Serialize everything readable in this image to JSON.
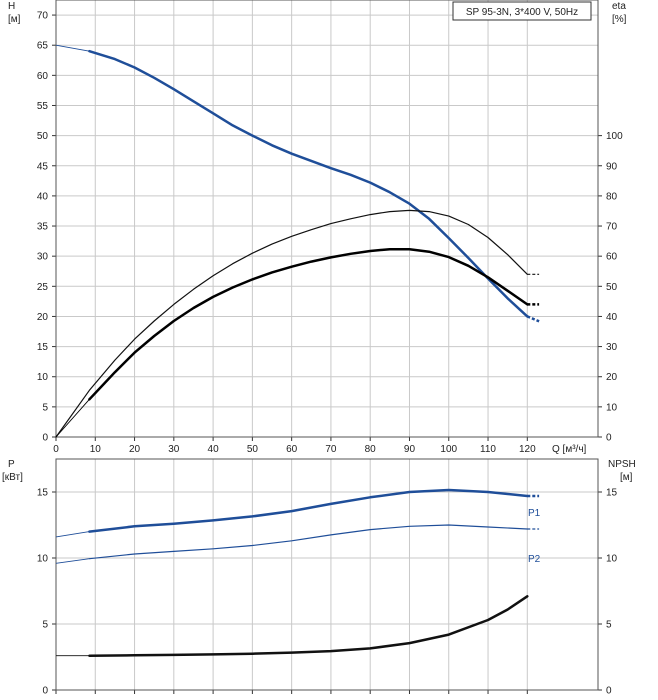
{
  "chart_data": [
    {
      "type": "line",
      "title": "SP 95-3N, 3*400 V, 50Hz",
      "xlabel": "Q [м³/ч]",
      "x_ticks": [
        0,
        10,
        20,
        30,
        40,
        50,
        60,
        70,
        80,
        90,
        100,
        110,
        120
      ],
      "xlim": [
        0,
        138
      ],
      "left_axis": {
        "name": "H",
        "unit": "[м]",
        "ylim": [
          0,
          72.5
        ],
        "ticks": [
          0,
          5,
          10,
          15,
          20,
          25,
          30,
          35,
          40,
          45,
          50,
          55,
          60,
          65,
          70
        ]
      },
      "right_axis": {
        "name": "eta",
        "unit": "[%]",
        "ylim": [
          0,
          145
        ],
        "ticks": [
          0,
          10,
          20,
          30,
          40,
          50,
          60,
          70,
          80,
          90,
          100
        ]
      },
      "grid": true,
      "series": [
        {
          "axis": "left",
          "color": "#1f4e99",
          "width": 2.5,
          "thin_extension": [
            [
              0,
              65
            ],
            [
              8.5,
              64
            ]
          ],
          "values": [
            [
              8.5,
              64
            ],
            [
              15,
              62.7
            ],
            [
              20,
              61.3
            ],
            [
              25,
              59.6
            ],
            [
              30,
              57.7
            ],
            [
              35,
              55.7
            ],
            [
              40,
              53.7
            ],
            [
              45,
              51.7
            ],
            [
              50,
              50
            ],
            [
              55,
              48.4
            ],
            [
              60,
              47
            ],
            [
              65,
              45.8
            ],
            [
              70,
              44.6
            ],
            [
              75,
              43.5
            ],
            [
              80,
              42.2
            ],
            [
              85,
              40.6
            ],
            [
              90,
              38.7
            ],
            [
              95,
              36.2
            ],
            [
              100,
              33
            ],
            [
              105,
              29.7
            ],
            [
              110,
              26.3
            ],
            [
              115,
              23
            ],
            [
              120,
              20
            ]
          ],
          "dashed_extension": [
            [
              120,
              20
            ],
            [
              123,
              19.2
            ]
          ]
        },
        {
          "axis": "right",
          "color": "#111111",
          "width": 1.2,
          "values": [
            [
              0,
              0
            ],
            [
              8.5,
              15.5
            ],
            [
              15,
              25.5
            ],
            [
              20,
              32.5
            ],
            [
              25,
              38.5
            ],
            [
              30,
              44
            ],
            [
              35,
              49
            ],
            [
              40,
              53.5
            ],
            [
              45,
              57.5
            ],
            [
              50,
              61
            ],
            [
              55,
              64
            ],
            [
              60,
              66.6
            ],
            [
              65,
              68.8
            ],
            [
              70,
              70.8
            ],
            [
              75,
              72.4
            ],
            [
              80,
              73.8
            ],
            [
              85,
              74.8
            ],
            [
              90,
              75.2
            ],
            [
              95,
              74.8
            ],
            [
              100,
              73.3
            ],
            [
              105,
              70.5
            ],
            [
              110,
              66.2
            ],
            [
              115,
              60.5
            ],
            [
              120,
              54
            ]
          ],
          "dashed_extension": [
            [
              120,
              54
            ],
            [
              123,
              54
            ]
          ]
        },
        {
          "axis": "right",
          "color": "#000000",
          "width": 2.5,
          "thin_extension": [
            [
              0,
              0
            ],
            [
              8.5,
              12.5
            ]
          ],
          "values": [
            [
              8.5,
              12.5
            ],
            [
              15,
              21.5
            ],
            [
              20,
              28
            ],
            [
              25,
              33.5
            ],
            [
              30,
              38.5
            ],
            [
              35,
              42.8
            ],
            [
              40,
              46.5
            ],
            [
              45,
              49.6
            ],
            [
              50,
              52.3
            ],
            [
              55,
              54.6
            ],
            [
              60,
              56.5
            ],
            [
              65,
              58.2
            ],
            [
              70,
              59.6
            ],
            [
              75,
              60.8
            ],
            [
              80,
              61.7
            ],
            [
              85,
              62.3
            ],
            [
              90,
              62.3
            ],
            [
              95,
              61.5
            ],
            [
              100,
              59.7
            ],
            [
              105,
              56.8
            ],
            [
              110,
              53
            ],
            [
              115,
              48.5
            ],
            [
              120,
              44
            ]
          ],
          "dashed_extension": [
            [
              120,
              44
            ],
            [
              123,
              44
            ]
          ]
        }
      ]
    },
    {
      "type": "line",
      "x_ticks": [
        0,
        10,
        20,
        30,
        40,
        50,
        60,
        70,
        80,
        90,
        100,
        110,
        120
      ],
      "xlim": [
        0,
        138
      ],
      "left_axis": {
        "name": "P",
        "unit": "[кВт]",
        "ylim": [
          0,
          17.5
        ],
        "ticks": [
          0,
          5,
          10,
          15
        ]
      },
      "right_axis": {
        "name": "NPSH",
        "unit": "[м]",
        "ylim": [
          0,
          17.5
        ],
        "ticks": [
          0,
          5,
          10,
          15
        ]
      },
      "grid": true,
      "series": [
        {
          "name": "P1",
          "axis": "left",
          "color": "#1f4e99",
          "width": 2.5,
          "thin_extension": [
            [
              0,
              11.6
            ],
            [
              8.5,
              12
            ]
          ],
          "values": [
            [
              8.5,
              12
            ],
            [
              20,
              12.4
            ],
            [
              30,
              12.6
            ],
            [
              40,
              12.85
            ],
            [
              50,
              13.15
            ],
            [
              60,
              13.55
            ],
            [
              70,
              14.1
            ],
            [
              80,
              14.6
            ],
            [
              90,
              15
            ],
            [
              100,
              15.15
            ],
            [
              110,
              15
            ],
            [
              120,
              14.7
            ]
          ],
          "dashed_extension": [
            [
              120,
              14.7
            ],
            [
              123,
              14.7
            ]
          ]
        },
        {
          "name": "P2",
          "axis": "left",
          "color": "#1f4e99",
          "width": 1.2,
          "thin_extension": [
            [
              0,
              9.6
            ],
            [
              8.5,
              9.95
            ]
          ],
          "values": [
            [
              8.5,
              9.95
            ],
            [
              20,
              10.3
            ],
            [
              30,
              10.5
            ],
            [
              40,
              10.7
            ],
            [
              50,
              10.95
            ],
            [
              60,
              11.3
            ],
            [
              70,
              11.75
            ],
            [
              80,
              12.15
            ],
            [
              90,
              12.4
            ],
            [
              100,
              12.5
            ],
            [
              110,
              12.35
            ],
            [
              120,
              12.2
            ]
          ],
          "dashed_extension": [
            [
              120,
              12.2
            ],
            [
              123,
              12.2
            ]
          ]
        },
        {
          "axis": "right",
          "color": "#111111",
          "width": 2.5,
          "thin_extension": [
            [
              0,
              2.6
            ],
            [
              8.5,
              2.6
            ]
          ],
          "values": [
            [
              8.5,
              2.6
            ],
            [
              20,
              2.63
            ],
            [
              30,
              2.66
            ],
            [
              40,
              2.7
            ],
            [
              50,
              2.75
            ],
            [
              60,
              2.83
            ],
            [
              70,
              2.95
            ],
            [
              80,
              3.15
            ],
            [
              90,
              3.55
            ],
            [
              100,
              4.2
            ],
            [
              110,
              5.3
            ],
            [
              115,
              6.1
            ],
            [
              120,
              7.1
            ]
          ]
        }
      ]
    }
  ]
}
